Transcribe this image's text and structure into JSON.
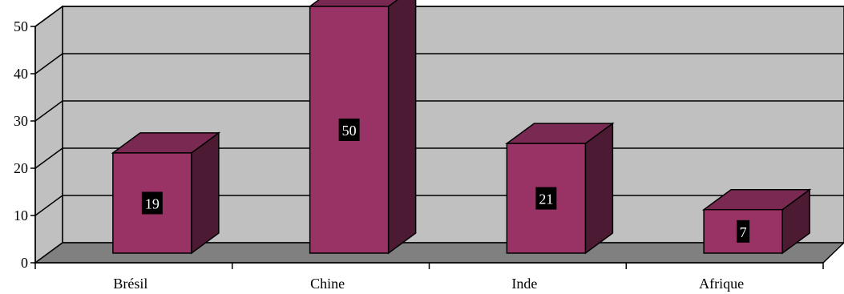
{
  "chart_data": {
    "type": "bar",
    "categories": [
      "Brésil",
      "Chine",
      "Inde",
      "Afrique"
    ],
    "values": [
      19,
      50,
      21,
      7
    ],
    "title": "",
    "xlabel": "",
    "ylabel": "",
    "ylim": [
      0,
      50
    ],
    "yticks": [
      0,
      10,
      20,
      30,
      40,
      50
    ],
    "grid": true,
    "three_d": true,
    "legend": "none",
    "colors": {
      "bar_front": "#993366",
      "bar_side": "#4d1a33",
      "bar_top": "#7a2952",
      "wall": "#c0c0c0",
      "floor": "#808080",
      "label_bg": "#000000",
      "label_text": "#ffffff"
    }
  }
}
